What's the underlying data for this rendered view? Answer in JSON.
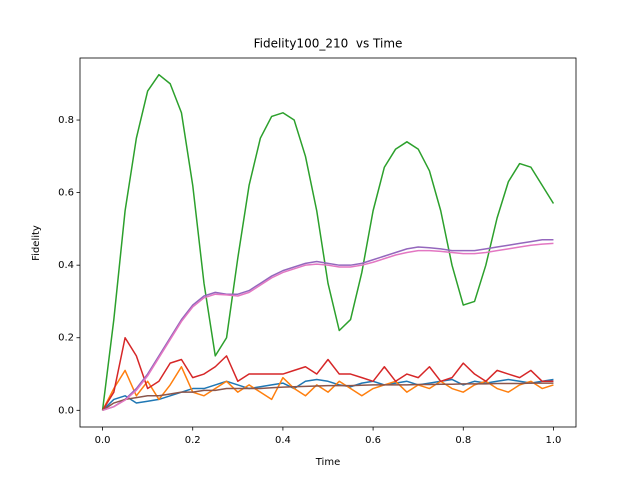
{
  "chart_data": {
    "type": "line",
    "title": "Fidelity100_210  vs Time",
    "x_label": "Time",
    "y_label": "Fidelity",
    "x": [
      0,
      0.025,
      0.05,
      0.075,
      0.1,
      0.125,
      0.15,
      0.175,
      0.2,
      0.225,
      0.25,
      0.275,
      0.3,
      0.325,
      0.35,
      0.375,
      0.4,
      0.425,
      0.45,
      0.475,
      0.5,
      0.525,
      0.55,
      0.575,
      0.6,
      0.625,
      0.65,
      0.675,
      0.7,
      0.725,
      0.75,
      0.775,
      0.8,
      0.825,
      0.85,
      0.875,
      0.9,
      0.925,
      0.95,
      0.975,
      1.0
    ],
    "series": [
      {
        "color": "#1f77b4",
        "values": [
          0,
          0.03,
          0.04,
          0.02,
          0.025,
          0.03,
          0.04,
          0.05,
          0.06,
          0.06,
          0.07,
          0.08,
          0.07,
          0.06,
          0.065,
          0.07,
          0.075,
          0.06,
          0.08,
          0.085,
          0.08,
          0.07,
          0.065,
          0.075,
          0.08,
          0.07,
          0.075,
          0.08,
          0.07,
          0.075,
          0.08,
          0.085,
          0.07,
          0.08,
          0.075,
          0.08,
          0.085,
          0.08,
          0.075,
          0.08,
          0.085
        ]
      },
      {
        "color": "#ff7f0e",
        "values": [
          0,
          0.06,
          0.11,
          0.04,
          0.08,
          0.03,
          0.07,
          0.12,
          0.05,
          0.04,
          0.06,
          0.08,
          0.05,
          0.07,
          0.05,
          0.03,
          0.09,
          0.06,
          0.04,
          0.07,
          0.05,
          0.08,
          0.06,
          0.04,
          0.06,
          0.07,
          0.08,
          0.05,
          0.07,
          0.06,
          0.08,
          0.06,
          0.05,
          0.07,
          0.08,
          0.06,
          0.05,
          0.07,
          0.08,
          0.06,
          0.07
        ]
      },
      {
        "color": "#2ca02c",
        "values": [
          0,
          0.25,
          0.55,
          0.75,
          0.88,
          0.925,
          0.9,
          0.82,
          0.62,
          0.35,
          0.15,
          0.2,
          0.42,
          0.62,
          0.75,
          0.81,
          0.82,
          0.8,
          0.7,
          0.55,
          0.35,
          0.22,
          0.25,
          0.38,
          0.55,
          0.67,
          0.72,
          0.74,
          0.72,
          0.66,
          0.55,
          0.4,
          0.29,
          0.3,
          0.4,
          0.53,
          0.63,
          0.68,
          0.67,
          0.62,
          0.57
        ]
      },
      {
        "color": "#d62728",
        "values": [
          0,
          0.05,
          0.2,
          0.15,
          0.06,
          0.08,
          0.13,
          0.14,
          0.09,
          0.1,
          0.12,
          0.15,
          0.08,
          0.1,
          0.1,
          0.1,
          0.1,
          0.11,
          0.12,
          0.1,
          0.14,
          0.1,
          0.1,
          0.09,
          0.08,
          0.12,
          0.08,
          0.1,
          0.09,
          0.12,
          0.08,
          0.09,
          0.13,
          0.1,
          0.08,
          0.11,
          0.1,
          0.09,
          0.11,
          0.08,
          0.08
        ]
      },
      {
        "color": "#9467bd",
        "values": [
          0,
          0.01,
          0.03,
          0.06,
          0.1,
          0.15,
          0.2,
          0.25,
          0.29,
          0.315,
          0.325,
          0.32,
          0.32,
          0.33,
          0.35,
          0.37,
          0.385,
          0.395,
          0.405,
          0.41,
          0.405,
          0.4,
          0.4,
          0.405,
          0.415,
          0.425,
          0.435,
          0.445,
          0.45,
          0.448,
          0.445,
          0.44,
          0.44,
          0.44,
          0.445,
          0.45,
          0.455,
          0.46,
          0.465,
          0.47,
          0.47
        ]
      },
      {
        "color": "#8c564b",
        "values": [
          0,
          0.02,
          0.03,
          0.035,
          0.04,
          0.04,
          0.045,
          0.05,
          0.05,
          0.055,
          0.055,
          0.06,
          0.06,
          0.06,
          0.06,
          0.062,
          0.064,
          0.065,
          0.066,
          0.067,
          0.068,
          0.068,
          0.068,
          0.069,
          0.07,
          0.07,
          0.07,
          0.07,
          0.071,
          0.071,
          0.072,
          0.072,
          0.073,
          0.073,
          0.073,
          0.074,
          0.074,
          0.074,
          0.075,
          0.075,
          0.075
        ]
      },
      {
        "color": "#e377c2",
        "values": [
          0,
          0.01,
          0.028,
          0.055,
          0.095,
          0.145,
          0.195,
          0.245,
          0.285,
          0.31,
          0.32,
          0.318,
          0.315,
          0.325,
          0.345,
          0.365,
          0.38,
          0.39,
          0.4,
          0.403,
          0.4,
          0.395,
          0.395,
          0.4,
          0.408,
          0.418,
          0.428,
          0.435,
          0.44,
          0.44,
          0.438,
          0.435,
          0.432,
          0.432,
          0.435,
          0.44,
          0.445,
          0.45,
          0.455,
          0.458,
          0.46
        ]
      }
    ],
    "xlim": [
      -0.05,
      1.05
    ],
    "ylim": [
      -0.046,
      0.971
    ],
    "xticks": [
      {
        "value": 0,
        "label": "0.0"
      },
      0.2,
      0.4,
      0.6,
      0.8,
      {
        "value": 1.0,
        "label": "1.0"
      }
    ],
    "yticks": [
      {
        "value": 0,
        "label": "0.0"
      },
      0.2,
      0.4,
      0.6,
      0.8
    ]
  }
}
